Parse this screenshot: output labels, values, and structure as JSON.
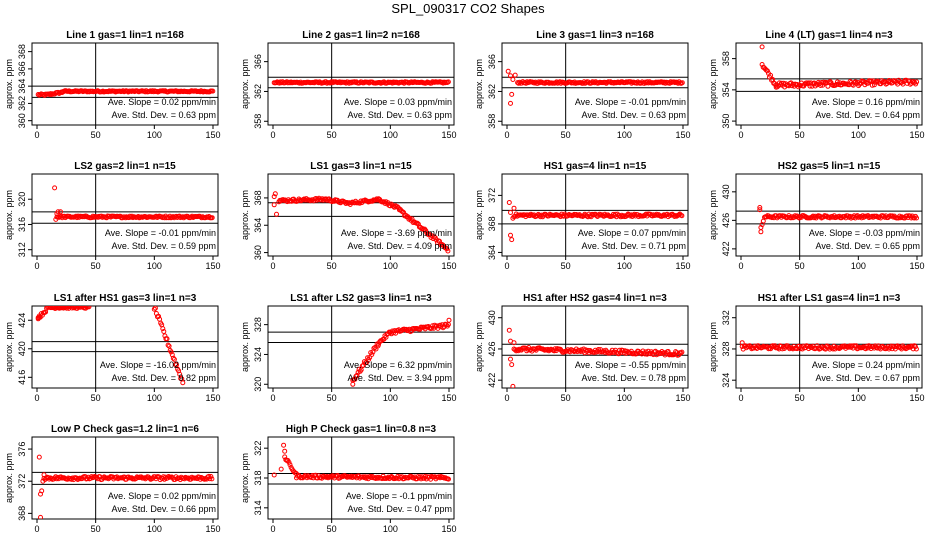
{
  "figure_title": "SPL_090317  CO2 Shapes",
  "chart_data": [
    {
      "type": "scatter",
      "title": "Line 1 gas=1 lin=1 n=168",
      "ylabel": "approx. ppm",
      "xticks": [
        0,
        50,
        100,
        150
      ],
      "yticks": [
        360,
        362,
        364,
        366,
        368
      ],
      "xlim": [
        0,
        150
      ],
      "ylim": [
        359.5,
        369
      ],
      "vline": 50,
      "hlines": [
        364.0,
        362.7
      ],
      "slope_text": "Ave. Slope =  0.02  ppm/min",
      "std_text": "Ave. Std. Dev. =  0.63  ppm",
      "segments": [
        {
          "x0": 1,
          "x1": 8,
          "y0": 363.0,
          "y1": 363.0,
          "noise": 0.1
        },
        {
          "x0": 8,
          "x1": 22,
          "y0": 363.0,
          "y1": 363.3,
          "noise": 0.1
        },
        {
          "x0": 22,
          "x1": 150,
          "y0": 363.4,
          "y1": 363.4,
          "noise": 0.08
        }
      ],
      "extra": []
    },
    {
      "type": "scatter",
      "title": "Line 2 gas=1 lin=2 n=168",
      "ylabel": "approx. ppm",
      "xticks": [
        0,
        50,
        100,
        150
      ],
      "yticks": [
        358,
        362,
        366
      ],
      "xlim": [
        0,
        150
      ],
      "ylim": [
        357.5,
        368.5
      ],
      "vline": 50,
      "hlines": [
        363.9,
        362.5
      ],
      "slope_text": "Ave. Slope =  0.03  ppm/min",
      "std_text": "Ave. Std. Dev. =  0.63  ppm",
      "segments": [
        {
          "x0": 1,
          "x1": 150,
          "y0": 363.2,
          "y1": 363.2,
          "noise": 0.1
        }
      ],
      "extra": []
    },
    {
      "type": "scatter",
      "title": "Line 3 gas=1 lin=3 n=168",
      "ylabel": "approx. ppm",
      "xticks": [
        0,
        50,
        100,
        150
      ],
      "yticks": [
        358,
        362,
        366
      ],
      "xlim": [
        0,
        150
      ],
      "ylim": [
        357.5,
        368.5
      ],
      "vline": 50,
      "hlines": [
        363.9,
        362.5
      ],
      "slope_text": "Ave. Slope =  -0.01  ppm/min",
      "std_text": "Ave. Std. Dev. =  0.63  ppm",
      "segments": [
        {
          "x0": 9,
          "x1": 150,
          "y0": 363.2,
          "y1": 363.2,
          "noise": 0.12
        }
      ],
      "extra": [
        [
          1,
          364.7
        ],
        [
          3,
          364.1
        ],
        [
          4,
          361.6
        ],
        [
          3,
          360.4
        ],
        [
          5,
          363.6
        ],
        [
          7,
          364.2
        ]
      ]
    },
    {
      "type": "scatter",
      "title": "Line 4 (LT) gas=1 lin=4 n=3",
      "ylabel": "approx. ppm",
      "xticks": [
        0,
        50,
        100,
        150
      ],
      "yticks": [
        350,
        354,
        358
      ],
      "xlim": [
        0,
        150
      ],
      "ylim": [
        349.5,
        360
      ],
      "vline": 50,
      "hlines": [
        355.4,
        353.8
      ],
      "slope_text": "Ave. Slope =  0.16  ppm/min",
      "std_text": "Ave. Std. Dev. =  0.64  ppm",
      "segments": [
        {
          "x0": 18,
          "x1": 30,
          "y0": 357.3,
          "y1": 354.6,
          "noise": 0.25
        },
        {
          "x0": 30,
          "x1": 150,
          "y0": 354.6,
          "y1": 355.0,
          "noise": 0.3
        }
      ],
      "extra": [
        [
          18,
          359.5
        ]
      ]
    },
    {
      "type": "scatter",
      "title": "LS2 gas=2 lin=1 n=15",
      "ylabel": "approx. ppm",
      "xticks": [
        0,
        50,
        100,
        150
      ],
      "yticks": [
        312,
        316,
        320
      ],
      "xlim": [
        0,
        150
      ],
      "ylim": [
        311,
        324
      ],
      "vline": 50,
      "hlines": [
        318.0,
        316.2
      ],
      "slope_text": "Ave. Slope =  -0.01  ppm/min",
      "std_text": "Ave. Std. Dev. =  0.59  ppm",
      "segments": [
        {
          "x0": 17,
          "x1": 150,
          "y0": 317.2,
          "y1": 317.2,
          "noise": 0.15
        }
      ],
      "extra": [
        [
          15,
          321.8
        ],
        [
          17,
          317.7
        ],
        [
          16,
          316.8
        ],
        [
          18,
          318.0
        ],
        [
          20,
          318.0
        ]
      ]
    },
    {
      "type": "scatter",
      "title": "LS1 gas=3 lin=1 n=15",
      "ylabel": "approx. ppm",
      "xticks": [
        0,
        50,
        100,
        150
      ],
      "yticks": [
        360,
        364,
        368
      ],
      "xlim": [
        0,
        150
      ],
      "ylim": [
        359.5,
        371.5
      ],
      "vline": 50,
      "hlines": [
        367.3,
        365.3
      ],
      "slope_text": "Ave. Slope =  -3.69  ppm/min",
      "std_text": "Ave. Std. Dev. =  4.09  ppm",
      "segments": [
        {
          "x0": 5,
          "x1": 45,
          "y0": 367.6,
          "y1": 367.8,
          "noise": 0.2
        },
        {
          "x0": 45,
          "x1": 65,
          "y0": 367.8,
          "y1": 367.2,
          "noise": 0.2
        },
        {
          "x0": 65,
          "x1": 90,
          "y0": 367.2,
          "y1": 367.8,
          "noise": 0.2
        },
        {
          "x0": 90,
          "x1": 105,
          "y0": 367.8,
          "y1": 366.6,
          "noise": 0.2
        },
        {
          "x0": 105,
          "x1": 150,
          "y0": 366.6,
          "y1": 360.3,
          "noise": 0.25
        }
      ],
      "extra": [
        [
          1,
          367.0
        ],
        [
          2,
          368.6
        ],
        [
          3,
          365.6
        ],
        [
          1,
          368.2
        ]
      ]
    },
    {
      "type": "scatter",
      "title": "HS1 gas=4 lin=1 n=15",
      "ylabel": "approx. ppm",
      "xticks": [
        0,
        50,
        100,
        150
      ],
      "yticks": [
        364,
        368,
        372
      ],
      "xlim": [
        0,
        150
      ],
      "ylim": [
        363.5,
        375
      ],
      "vline": 50,
      "hlines": [
        369.9,
        368.0
      ],
      "slope_text": "Ave. Slope =  0.07  ppm/min",
      "std_text": "Ave. Std. Dev. =  0.71  ppm",
      "segments": [
        {
          "x0": 6,
          "x1": 150,
          "y0": 369.2,
          "y1": 369.2,
          "noise": 0.2
        }
      ],
      "extra": [
        [
          2,
          371.0
        ],
        [
          3,
          369.6
        ],
        [
          3,
          366.4
        ],
        [
          4,
          365.8
        ],
        [
          5,
          368.8
        ],
        [
          6,
          370.2
        ]
      ]
    },
    {
      "type": "scatter",
      "title": "HS2 gas=5 lin=1 n=15",
      "ylabel": "approx. ppm",
      "xticks": [
        0,
        50,
        100,
        150
      ],
      "yticks": [
        422,
        426,
        430
      ],
      "xlim": [
        0,
        150
      ],
      "ylim": [
        421,
        432.5
      ],
      "vline": 50,
      "hlines": [
        427.3,
        425.5
      ],
      "slope_text": "Ave. Slope =  -0.03  ppm/min",
      "std_text": "Ave. Std. Dev. =  0.65  ppm",
      "segments": [
        {
          "x0": 20,
          "x1": 150,
          "y0": 426.5,
          "y1": 426.5,
          "noise": 0.18
        }
      ],
      "extra": [
        [
          16,
          427.8
        ],
        [
          16,
          427.5
        ],
        [
          17,
          425.0
        ],
        [
          17,
          424.4
        ],
        [
          18,
          425.4
        ],
        [
          19,
          425.9
        ]
      ]
    },
    {
      "type": "scatter",
      "title": "LS1 after HS1 gas=3 lin=1 n=3",
      "ylabel": "approx. ppm",
      "xticks": [
        0,
        50,
        100,
        150
      ],
      "yticks": [
        416,
        420,
        424
      ],
      "xlim": [
        0,
        150
      ],
      "ylim": [
        414.5,
        426
      ],
      "vline": 50,
      "hlines": [
        421.0,
        419.6
      ],
      "slope_text": "Ave. Slope =  -16.02  ppm/min",
      "std_text": "Ave. Std. Dev. =  9.82  ppm",
      "segments": [
        {
          "x0": 1,
          "x1": 10,
          "y0": 424.3,
          "y1": 425.8,
          "noise": 0.2
        },
        {
          "x0": 10,
          "x1": 45,
          "y0": 425.8,
          "y1": 425.8,
          "noise": 0.15
        },
        {
          "x0": 100,
          "x1": 125,
          "y0": 425.8,
          "y1": 415.0,
          "noise": 0.3
        }
      ],
      "extra": [
        [
          1,
          424.2
        ],
        [
          2,
          424.6
        ]
      ]
    },
    {
      "type": "scatter",
      "title": "LS1 after LS2 gas=3 lin=1 n=3",
      "ylabel": "approx. ppm",
      "xticks": [
        0,
        50,
        100,
        150
      ],
      "yticks": [
        320,
        324,
        328
      ],
      "xlim": [
        0,
        150
      ],
      "ylim": [
        319.5,
        330.5
      ],
      "vline": 50,
      "hlines": [
        327.0,
        325.6
      ],
      "slope_text": "Ave. Slope =  6.32  ppm/min",
      "std_text": "Ave. Std. Dev. =  3.94  ppm",
      "segments": [
        {
          "x0": 68,
          "x1": 90,
          "y0": 320.5,
          "y1": 325.5,
          "noise": 0.3
        },
        {
          "x0": 90,
          "x1": 100,
          "y0": 325.5,
          "y1": 327.0,
          "noise": 0.2
        },
        {
          "x0": 100,
          "x1": 150,
          "y0": 327.0,
          "y1": 327.9,
          "noise": 0.25
        }
      ],
      "extra": [
        [
          68,
          320.0
        ],
        [
          150,
          328.6
        ]
      ]
    },
    {
      "type": "scatter",
      "title": "HS1 after HS2 gas=4 lin=1 n=3",
      "ylabel": "approx. ppm",
      "xticks": [
        0,
        50,
        100,
        150
      ],
      "yticks": [
        422,
        426,
        430
      ],
      "xlim": [
        0,
        150
      ],
      "ylim": [
        421,
        431.5
      ],
      "vline": 50,
      "hlines": [
        426.6,
        425.2
      ],
      "slope_text": "Ave. Slope =  -0.55  ppm/min",
      "std_text": "Ave. Std. Dev. =  0.78  ppm",
      "segments": [
        {
          "x0": 6,
          "x1": 150,
          "y0": 426.0,
          "y1": 425.4,
          "noise": 0.25
        }
      ],
      "extra": [
        [
          2,
          428.4
        ],
        [
          3,
          427.0
        ],
        [
          3,
          424.7
        ],
        [
          4,
          424.0
        ],
        [
          5,
          421.2
        ],
        [
          6,
          426.8
        ]
      ]
    },
    {
      "type": "scatter",
      "title": "HS1 after LS1 gas=4 lin=1 n=3",
      "ylabel": "approx. ppm",
      "xticks": [
        0,
        50,
        100,
        150
      ],
      "yticks": [
        324,
        328,
        332
      ],
      "xlim": [
        0,
        150
      ],
      "ylim": [
        323,
        333.5
      ],
      "vline": 50,
      "hlines": [
        328.6,
        327.2
      ],
      "slope_text": "Ave. Slope =  0.24  ppm/min",
      "std_text": "Ave. Std. Dev. =  0.67  ppm",
      "segments": [
        {
          "x0": 1,
          "x1": 150,
          "y0": 328.2,
          "y1": 328.2,
          "noise": 0.22
        }
      ],
      "extra": [
        [
          1,
          328.8
        ]
      ]
    },
    {
      "type": "scatter",
      "title": "Low P Check gas=1.2 lin=1 n=6",
      "ylabel": "approx. ppm",
      "xticks": [
        0,
        50,
        100,
        150
      ],
      "yticks": [
        368,
        372,
        376
      ],
      "xlim": [
        0,
        150
      ],
      "ylim": [
        367.3,
        377.5
      ],
      "vline": 50,
      "hlines": [
        373.1,
        371.6
      ],
      "slope_text": "Ave. Slope =  0.02  ppm/min",
      "std_text": "Ave. Std. Dev. =  0.66  ppm",
      "segments": [
        {
          "x0": 6,
          "x1": 150,
          "y0": 372.4,
          "y1": 372.4,
          "noise": 0.2
        }
      ],
      "extra": [
        [
          2,
          375.0
        ],
        [
          3,
          370.4
        ],
        [
          4,
          370.8
        ],
        [
          3,
          367.5
        ],
        [
          5,
          372.0
        ],
        [
          6,
          372.8
        ]
      ]
    },
    {
      "type": "scatter",
      "title": "High P Check gas=1 lin=0.8 n=3",
      "ylabel": "approx. ppm",
      "xticks": [
        0,
        50,
        100,
        150
      ],
      "yticks": [
        314,
        318,
        322
      ],
      "xlim": [
        0,
        150
      ],
      "ylim": [
        312.5,
        323.5
      ],
      "vline": 50,
      "hlines": [
        318.6,
        317.2
      ],
      "slope_text": "Ave. Slope =  -0.1  ppm/min",
      "std_text": "Ave. Std. Dev. =  0.47  ppm",
      "segments": [
        {
          "x0": 10,
          "x1": 20,
          "y0": 320.8,
          "y1": 318.4,
          "noise": 0.2
        },
        {
          "x0": 20,
          "x1": 150,
          "y0": 318.2,
          "y1": 318.0,
          "noise": 0.2
        }
      ],
      "extra": [
        [
          1,
          318.4
        ],
        [
          7,
          319.2
        ],
        [
          9,
          322.4
        ],
        [
          10,
          321.6
        ]
      ]
    }
  ]
}
